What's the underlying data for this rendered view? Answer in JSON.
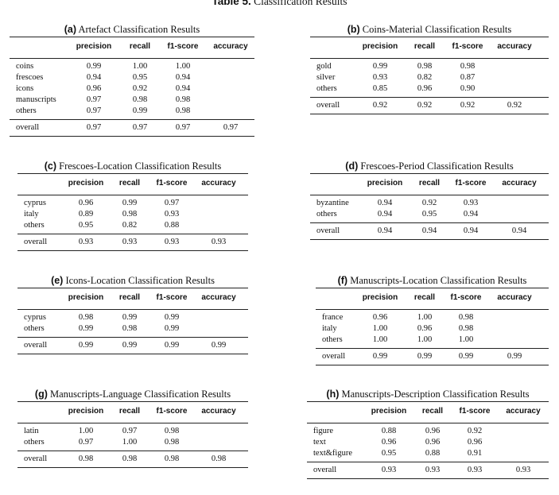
{
  "title": {
    "label": "Table 5.",
    "text": "Classification Results"
  },
  "headers": [
    "precision",
    "recall",
    "f1-score",
    "accuracy"
  ],
  "overall_label": "overall",
  "panels": [
    {
      "tag": "(a)",
      "caption": "Artefact Classification Results",
      "rows": [
        {
          "label": "coins",
          "values": [
            "0.99",
            "1.00",
            "1.00"
          ]
        },
        {
          "label": "frescoes",
          "values": [
            "0.94",
            "0.95",
            "0.94"
          ]
        },
        {
          "label": "icons",
          "values": [
            "0.96",
            "0.92",
            "0.94"
          ]
        },
        {
          "label": "manuscripts",
          "values": [
            "0.97",
            "0.98",
            "0.98"
          ]
        },
        {
          "label": "others",
          "values": [
            "0.97",
            "0.99",
            "0.98"
          ]
        }
      ],
      "overall": [
        "0.97",
        "0.97",
        "0.97",
        "0.97"
      ]
    },
    {
      "tag": "(b)",
      "caption": "Coins-Material Classification Results",
      "rows": [
        {
          "label": "gold",
          "values": [
            "0.99",
            "0.98",
            "0.98"
          ]
        },
        {
          "label": "silver",
          "values": [
            "0.93",
            "0.82",
            "0.87"
          ]
        },
        {
          "label": "others",
          "values": [
            "0.85",
            "0.96",
            "0.90"
          ]
        }
      ],
      "overall": [
        "0.92",
        "0.92",
        "0.92",
        "0.92"
      ]
    },
    {
      "tag": "(c)",
      "caption": "Frescoes-Location Classification Results",
      "rows": [
        {
          "label": "cyprus",
          "values": [
            "0.96",
            "0.99",
            "0.97"
          ]
        },
        {
          "label": "italy",
          "values": [
            "0.89",
            "0.98",
            "0.93"
          ]
        },
        {
          "label": "others",
          "values": [
            "0.95",
            "0.82",
            "0.88"
          ]
        }
      ],
      "overall": [
        "0.93",
        "0.93",
        "0.93",
        "0.93"
      ]
    },
    {
      "tag": "(d)",
      "caption": "Frescoes-Period Classification Results",
      "rows": [
        {
          "label": "byzantine",
          "values": [
            "0.94",
            "0.92",
            "0.93"
          ]
        },
        {
          "label": "others",
          "values": [
            "0.94",
            "0.95",
            "0.94"
          ]
        }
      ],
      "overall": [
        "0.94",
        "0.94",
        "0.94",
        "0.94"
      ]
    },
    {
      "tag": "(e)",
      "caption": "Icons-Location Classification Results",
      "rows": [
        {
          "label": "cyprus",
          "values": [
            "0.98",
            "0.99",
            "0.99"
          ]
        },
        {
          "label": "others",
          "values": [
            "0.99",
            "0.98",
            "0.99"
          ]
        }
      ],
      "overall": [
        "0.99",
        "0.99",
        "0.99",
        "0.99"
      ]
    },
    {
      "tag": "(f)",
      "caption": "Manuscripts-Location Classification Results",
      "rows": [
        {
          "label": "france",
          "values": [
            "0.96",
            "1.00",
            "0.98"
          ]
        },
        {
          "label": "italy",
          "values": [
            "1.00",
            "0.96",
            "0.98"
          ]
        },
        {
          "label": "others",
          "values": [
            "1.00",
            "1.00",
            "1.00"
          ]
        }
      ],
      "overall": [
        "0.99",
        "0.99",
        "0.99",
        "0.99"
      ]
    },
    {
      "tag": "(g)",
      "caption": "Manuscripts-Language Classification Results",
      "rows": [
        {
          "label": "latin",
          "values": [
            "1.00",
            "0.97",
            "0.98"
          ]
        },
        {
          "label": "others",
          "values": [
            "0.97",
            "1.00",
            "0.98"
          ]
        }
      ],
      "overall": [
        "0.98",
        "0.98",
        "0.98",
        "0.98"
      ]
    },
    {
      "tag": "(h)",
      "caption": "Manuscripts-Description Classification Results",
      "rows": [
        {
          "label": "figure",
          "values": [
            "0.88",
            "0.96",
            "0.92"
          ]
        },
        {
          "label": "text",
          "values": [
            "0.96",
            "0.96",
            "0.96"
          ]
        },
        {
          "label": "text&figure",
          "values": [
            "0.95",
            "0.88",
            "0.91"
          ]
        }
      ],
      "overall": [
        "0.93",
        "0.93",
        "0.93",
        "0.93"
      ]
    }
  ]
}
